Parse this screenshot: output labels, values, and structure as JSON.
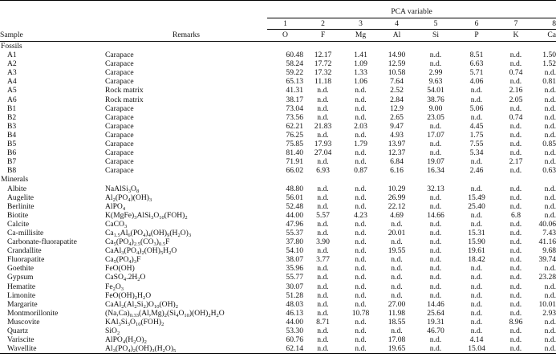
{
  "table": {
    "header": {
      "sample": "Sample",
      "remarks": "Remarks",
      "group_label": "PCA variable",
      "numbers": [
        "1",
        "2",
        "3",
        "4",
        "5",
        "6",
        "7",
        "8"
      ],
      "elements": [
        "O",
        "F",
        "Mg",
        "Al",
        "Si",
        "P",
        "K",
        "Ca"
      ]
    },
    "sections": [
      {
        "title": "Fossils",
        "rows": [
          {
            "sample": "A1",
            "remarks": "Carapace",
            "values": [
              "60.48",
              "12.17",
              "1.41",
              "14.90",
              "n.d.",
              "8.51",
              "n.d.",
              "1.50"
            ]
          },
          {
            "sample": "A2",
            "remarks": "Carapace",
            "values": [
              "58.24",
              "17.72",
              "1.09",
              "12.59",
              "n.d.",
              "6.63",
              "n.d.",
              "1.52"
            ]
          },
          {
            "sample": "A3",
            "remarks": "Carapace",
            "values": [
              "59.22",
              "17.32",
              "1.33",
              "10.58",
              "2.99",
              "5.71",
              "0.74",
              "n.d."
            ]
          },
          {
            "sample": "A4",
            "remarks": "Carapace",
            "values": [
              "65.13",
              "11.18",
              "1.06",
              "7.64",
              "9.63",
              "4.06",
              "n.d.",
              "0.81"
            ]
          },
          {
            "sample": "A5",
            "remarks": "Rock matrix",
            "values": [
              "41.31",
              "n.d.",
              "n.d.",
              "2.52",
              "54.01",
              "n.d.",
              "2.16",
              "n.d."
            ]
          },
          {
            "sample": "A6",
            "remarks": "Rock matrix",
            "values": [
              "38.17",
              "n.d.",
              "n.d.",
              "2.84",
              "38.76",
              "n.d.",
              "2.05",
              "n.d."
            ]
          },
          {
            "sample": "B1",
            "remarks": "Carapace",
            "values": [
              "73.04",
              "n.d.",
              "n.d.",
              "12.9",
              "9.00",
              "5.06",
              "n.d.",
              "n.d."
            ]
          },
          {
            "sample": "B2",
            "remarks": "Carapace",
            "values": [
              "73.56",
              "n.d.",
              "n.d.",
              "2.65",
              "23.05",
              "n.d.",
              "0.74",
              "n.d."
            ]
          },
          {
            "sample": "B3",
            "remarks": "Carapace",
            "values": [
              "62.21",
              "21.83",
              "2.03",
              "9.47",
              "n.d.",
              "4.45",
              "n.d.",
              "n.d."
            ]
          },
          {
            "sample": "B4",
            "remarks": "Carapace",
            "values": [
              "76.25",
              "n.d.",
              "n.d.",
              "4.93",
              "17.07",
              "1.75",
              "n.d.",
              "n.d."
            ]
          },
          {
            "sample": "B5",
            "remarks": "Carapace",
            "values": [
              "75.85",
              "17.93",
              "1.79",
              "13.97",
              "n.d.",
              "7.55",
              "n.d.",
              "0.85"
            ]
          },
          {
            "sample": "B6",
            "remarks": "Carapace",
            "values": [
              "81.40",
              "27.04",
              "n.d.",
              "12.37",
              "n.d.",
              "5.34",
              "n.d.",
              "n.d."
            ]
          },
          {
            "sample": "B7",
            "remarks": "Carapace",
            "values": [
              "71.91",
              "n.d.",
              "n.d.",
              "6.84",
              "19.07",
              "n.d.",
              "2.17",
              "n.d."
            ]
          },
          {
            "sample": "B8",
            "remarks": "Carapace",
            "values": [
              "66.02",
              "6.93",
              "0.87",
              "6.16",
              "16.34",
              "2.46",
              "n.d.",
              "0.63"
            ]
          }
        ]
      },
      {
        "title": "Minerals",
        "rows": [
          {
            "sample": "Albite",
            "remarks_html": "NaAlSi<sub>3</sub>O<sub>8</sub>",
            "values": [
              "48.80",
              "n.d.",
              "n.d.",
              "10.29",
              "32.13",
              "n.d.",
              "n.d.",
              "n.d."
            ]
          },
          {
            "sample": "Augelite",
            "remarks_html": "Al<sub>2</sub>(PO<sub>4</sub>)(OH)<sub>3</sub>",
            "values": [
              "56.01",
              "n.d.",
              "n.d.",
              "26.99",
              "n.d.",
              "15.49",
              "n.d.",
              "n.d."
            ]
          },
          {
            "sample": "Berlinite",
            "remarks_html": "AlPO<sub>4</sub>",
            "values": [
              "52.48",
              "n.d.",
              "n.d.",
              "22.12",
              "n.d.",
              "25.40",
              "n.d.",
              "n.d."
            ]
          },
          {
            "sample": "Biotite",
            "remarks_html": "K(MgFe)<sub>3</sub>AlSi<sub>3</sub>O<sub>10</sub>(FOH)<sub>2</sub>",
            "values": [
              "44.00",
              "5.57",
              "4.23",
              "4.69",
              "14.66",
              "n.d.",
              "6.8",
              "n.d."
            ]
          },
          {
            "sample": "Calcite",
            "remarks_html": "CaCO<sub>3</sub>",
            "values": [
              "47.96",
              "n.d.",
              "n.d.",
              "n.d.",
              "n.d.",
              "n.d.",
              "n.d.",
              "40.06"
            ]
          },
          {
            "sample": "Ca-millisite",
            "remarks_html": "Ca<sub>1.5</sub>Al<sub>6</sub>(PO<sub>4</sub>)<sub>4</sub>(OH)<sub>9</sub>(H<sub>2</sub>O)<sub>3</sub>",
            "values": [
              "55.37",
              "n.d.",
              "n.d.",
              "20.01",
              "n.d.",
              "15.31",
              "n.d.",
              "7.43"
            ]
          },
          {
            "sample": "Carbonate-fluorapatite",
            "remarks_html": "Ca<sub>5</sub>(PO<sub>4</sub>)<sub>2.5</sub>(CO<sub>3</sub>)<sub>0.5</sub>F",
            "values": [
              "37.80",
              "3.90",
              "n.d.",
              "n.d.",
              "n.d.",
              "15.90",
              "n.d.",
              "41.16"
            ]
          },
          {
            "sample": "Crandallite",
            "remarks_html": "CaAl<sub>3</sub>(PO<sub>4</sub>)<sub>2</sub>(OH)<sub>5</sub>H<sub>2</sub>O",
            "values": [
              "54.10",
              "n.d.",
              "n.d.",
              "19.55",
              "n.d.",
              "19.61",
              "n.d.",
              "9.68"
            ]
          },
          {
            "sample": "Fluorapatite",
            "remarks_html": "Ca<sub>5</sub>(PO<sub>4</sub>)<sub>3</sub>F",
            "values": [
              "38.07",
              "3.77",
              "n.d.",
              "n.d.",
              "n.d.",
              "18.42",
              "n.d.",
              "39.74"
            ]
          },
          {
            "sample": "Goethite",
            "remarks_html": "FeO(OH)",
            "values": [
              "35.96",
              "n.d.",
              "n.d.",
              "n.d.",
              "n.d.",
              "n.d.",
              "n.d.",
              "n.d."
            ]
          },
          {
            "sample": "Gypsum",
            "remarks_html": "CaSO<sub>4</sub>.2H<sub>2</sub>O",
            "values": [
              "55.77",
              "n.d.",
              "n.d.",
              "n.d.",
              "n.d.",
              "n.d.",
              "n.d.",
              "23.28"
            ]
          },
          {
            "sample": "Hematite",
            "remarks_html": "Fe<sub>2</sub>O<sub>3</sub>",
            "values": [
              "30.07",
              "n.d.",
              "n.d.",
              "n.d.",
              "n.d.",
              "n.d.",
              "n.d.",
              "n.d."
            ]
          },
          {
            "sample": "Limonite",
            "remarks_html": "FeO(OH)<sub>2</sub>H<sub>2</sub>O",
            "values": [
              "51.28",
              "n.d.",
              "n.d.",
              "n.d.",
              "n.d.",
              "n.d.",
              "n.d.",
              "n.d."
            ]
          },
          {
            "sample": "Margarite",
            "remarks_html": "CaAl<sub>2</sub>(Al<sub>2</sub>Si<sub>2</sub>)O<sub>10</sub>(OH)<sub>2</sub>",
            "values": [
              "48.03",
              "n.d.",
              "n.d.",
              "27.00",
              "14.46",
              "n.d.",
              "n.d.",
              "10.01"
            ]
          },
          {
            "sample": "Montmorillonite",
            "remarks_html": "(Na,Ca)<sub>0.33</sub>(Al,Mg)<sub>2</sub>(Si<sub>4</sub>O<sub>10</sub>)(OH)<sub>2</sub>H<sub>2</sub>O",
            "values": [
              "46.13",
              "n.d.",
              "10.78",
              "11.98",
              "25.64",
              "n.d.",
              "n.d.",
              "2.93"
            ]
          },
          {
            "sample": "Muscovite",
            "remarks_html": "KAl<sub>3</sub>Si<sub>3</sub>O<sub>10</sub>(FOH)<sub>2</sub>",
            "values": [
              "44.00",
              "8.71",
              "n.d.",
              "18.55",
              "19.31",
              "n.d.",
              "8.96",
              "n.d."
            ]
          },
          {
            "sample": "Quartz",
            "remarks_html": "SiO<sub>2</sub>",
            "values": [
              "53.30",
              "n.d.",
              "n.d.",
              "n.d.",
              "46.70",
              "n.d.",
              "n.d.",
              "n.d."
            ]
          },
          {
            "sample": "Variscite",
            "remarks_html": "AlPO<sub>4</sub>(H<sub>2</sub>O)<sub>2</sub>",
            "values": [
              "60.76",
              "n.d.",
              "n.d.",
              "17.08",
              "n.d.",
              "4.14",
              "n.d.",
              "n.d."
            ]
          },
          {
            "sample": "Wavellite",
            "remarks_html": "Al<sub>3</sub>(PO<sub>4</sub>)<sub>2</sub>(OH)<sub>3</sub>(H<sub>2</sub>O)<sub>5</sub>",
            "values": [
              "62.14",
              "n.d.",
              "n.d.",
              "19.65",
              "n.d.",
              "15.04",
              "n.d.",
              "n.d."
            ]
          }
        ]
      }
    ]
  }
}
